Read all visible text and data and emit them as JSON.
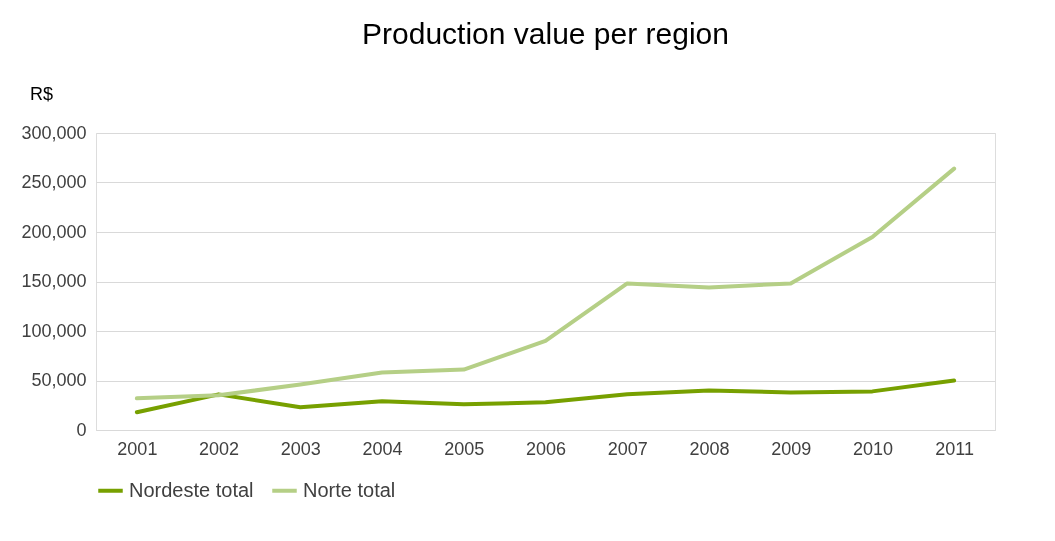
{
  "chart_data": {
    "type": "line",
    "title": "Production value per region",
    "ylabel": "R$",
    "categories": [
      "2001",
      "2002",
      "2003",
      "2004",
      "2005",
      "2006",
      "2007",
      "2008",
      "2009",
      "2010",
      "2011"
    ],
    "series": [
      {
        "name": "Nordeste total",
        "color": "#77a000",
        "values": [
          18000,
          36000,
          23000,
          29000,
          26000,
          28000,
          36000,
          40000,
          38000,
          39000,
          50000
        ]
      },
      {
        "name": "Norte total",
        "color": "#b5cf86",
        "values": [
          32000,
          35000,
          46000,
          58000,
          61000,
          90000,
          148000,
          144000,
          148000,
          195000,
          264000
        ]
      }
    ],
    "ylim": [
      0,
      300000
    ],
    "yticks": [
      {
        "value": 0,
        "label": "0"
      },
      {
        "value": 50000,
        "label": "50,000"
      },
      {
        "value": 100000,
        "label": "100,000"
      },
      {
        "value": 150000,
        "label": "150,000"
      },
      {
        "value": 200000,
        "label": "200,000"
      },
      {
        "value": 250000,
        "label": "250,000"
      },
      {
        "value": 300000,
        "label": "300,000"
      }
    ],
    "grid": "y",
    "legend": "bottom",
    "marker": "none",
    "line_style": "solid"
  }
}
